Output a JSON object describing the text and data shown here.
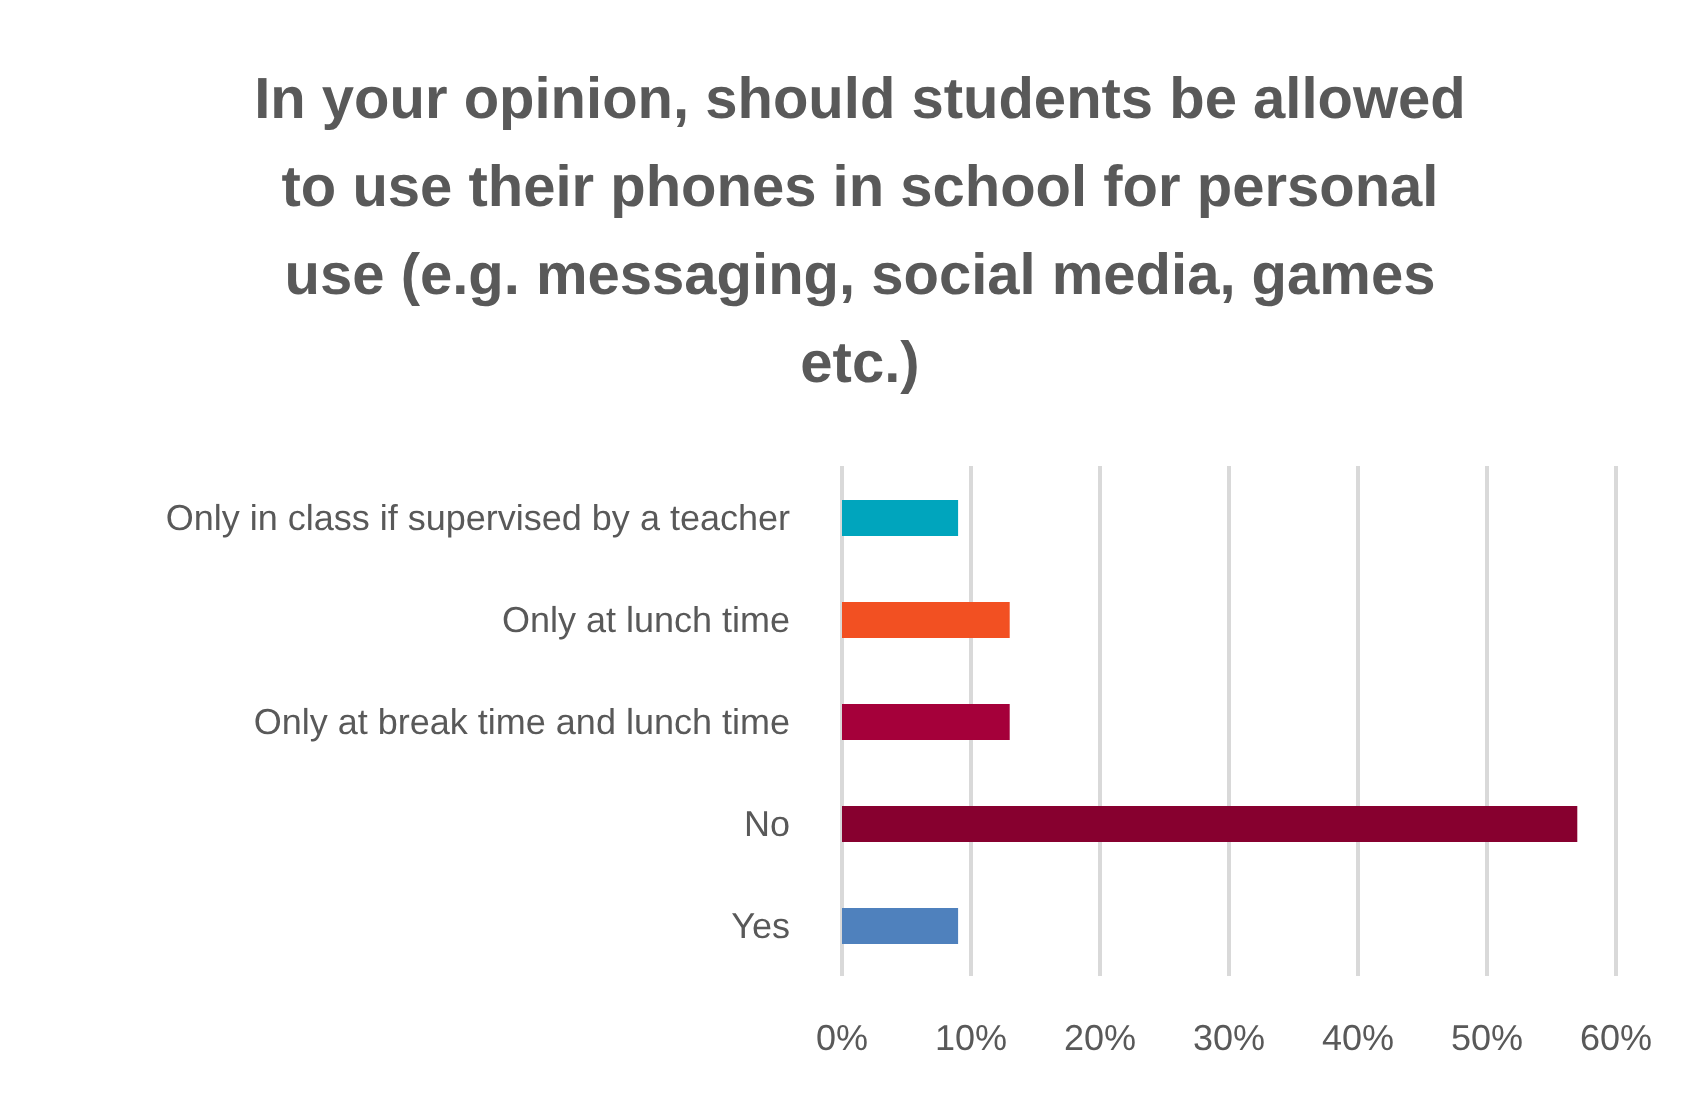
{
  "chart_data": {
    "type": "bar",
    "orientation": "horizontal",
    "title": "In your opinion, should students be allowed to use their phones in school for personal use (e.g. messaging, social media, games etc.)",
    "categories": [
      "Only in class if supervised by a teacher",
      "Only at lunch time",
      "Only at break time and lunch time",
      "No",
      "Yes"
    ],
    "values": [
      9,
      13,
      13,
      57,
      9
    ],
    "colors": [
      "#00a5bd",
      "#f25022",
      "#a5003a",
      "#87002f",
      "#4f81bd"
    ],
    "xlim": [
      0,
      60
    ],
    "xticks": [
      {
        "value": 0,
        "label": "0%"
      },
      {
        "value": 10,
        "label": "10%"
      },
      {
        "value": 20,
        "label": "20%"
      },
      {
        "value": 30,
        "label": "30%"
      },
      {
        "value": 40,
        "label": "40%"
      },
      {
        "value": 50,
        "label": "50%"
      },
      {
        "value": 60,
        "label": "60%"
      }
    ],
    "grid": "x",
    "legend": false
  }
}
